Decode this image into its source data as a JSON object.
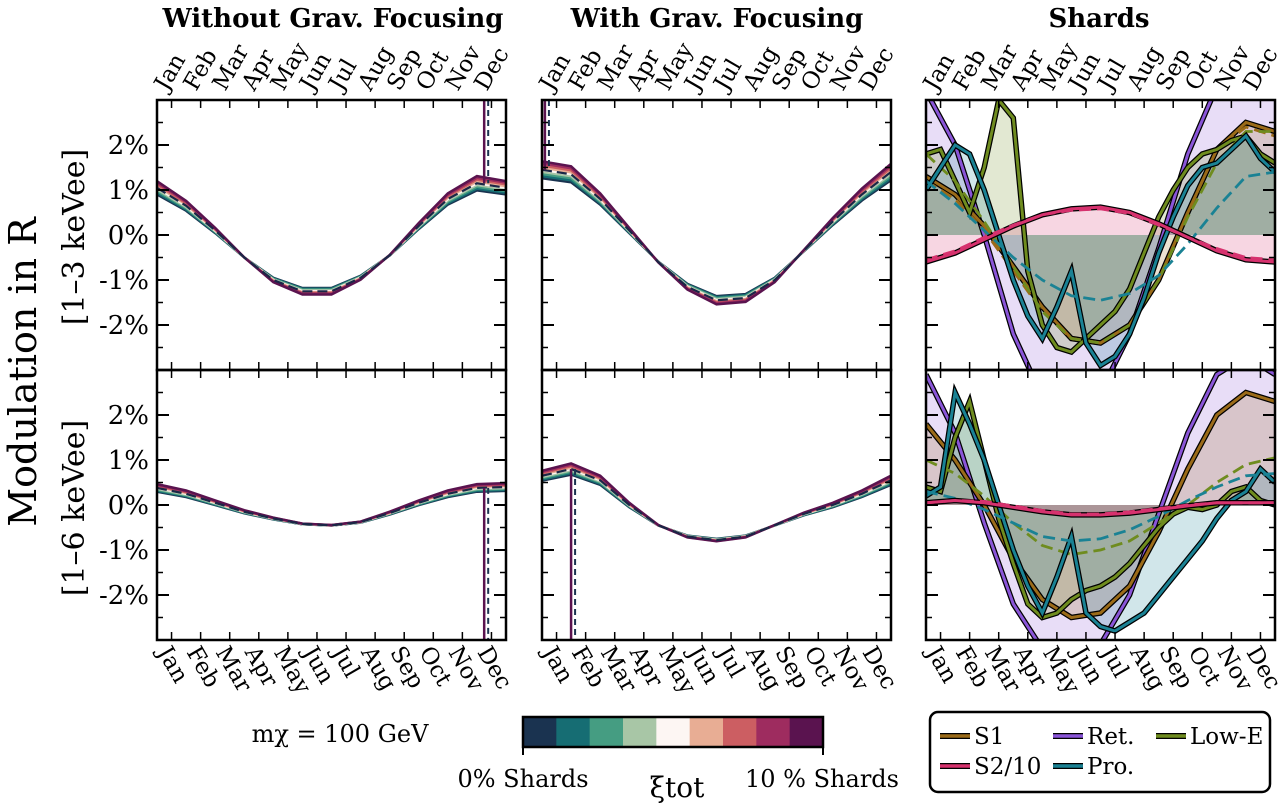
{
  "chart_data": {
    "type": "line",
    "ylabel": "Modulation in R",
    "months": [
      "Jan",
      "Feb",
      "Mar",
      "Apr",
      "May",
      "Jun",
      "Jul",
      "Aug",
      "Sep",
      "Oct",
      "Nov",
      "Dec"
    ],
    "column_titles": [
      "Without Grav. Focusing",
      "With Grav. Focusing",
      "Shards"
    ],
    "row_labels": [
      "[1–3 keVee]",
      "[1–6 keVee]"
    ],
    "ytick_labels": [
      "2%",
      "1%",
      "0%",
      "-1%",
      "-2%"
    ],
    "ytick_values": [
      2,
      1,
      0,
      -1,
      -2
    ],
    "ylim": [
      -3,
      3
    ],
    "mass_label": "mχ = 100 GeV",
    "colorbar": {
      "label": "ξtot",
      "left": "0% Shards",
      "right": "10 % Shards",
      "colors": [
        "#1a3350",
        "#166d73",
        "#459d82",
        "#a8c6a6",
        "#fdf6f3",
        "#e8ad94",
        "#cc5e62",
        "#9e2c5f",
        "#5a134f"
      ]
    },
    "legend": [
      {
        "name": "S1",
        "color": "#9b6b19"
      },
      {
        "name": "S2/10",
        "color": "#d6326e"
      },
      {
        "name": "Ret.",
        "color": "#8a55d8"
      },
      {
        "name": "Pro.",
        "color": "#1a8294"
      },
      {
        "name": "Low-E",
        "color": "#6f8c1f"
      }
    ],
    "panels": {
      "nofocus_1_3": {
        "x": [
          0,
          1,
          2,
          3,
          4,
          5,
          6,
          7,
          8,
          9,
          10,
          11,
          12
        ],
        "y": [
          1.05,
          0.65,
          0.1,
          -0.5,
          -1.0,
          -1.25,
          -1.25,
          -0.95,
          -0.45,
          0.2,
          0.8,
          1.15,
          1.05
        ]
      },
      "focus_1_3": {
        "x": [
          0,
          1,
          2,
          3,
          4,
          5,
          6,
          7,
          8,
          9,
          10,
          11,
          12
        ],
        "y": [
          1.45,
          1.35,
          0.8,
          0.1,
          -0.6,
          -1.15,
          -1.45,
          -1.4,
          -1.0,
          -0.35,
          0.3,
          0.9,
          1.4
        ]
      },
      "nofocus_1_6": {
        "x": [
          0,
          1,
          2,
          3,
          4,
          5,
          6,
          7,
          8,
          9,
          10,
          11,
          12
        ],
        "y": [
          0.38,
          0.25,
          0.05,
          -0.15,
          -0.3,
          -0.42,
          -0.45,
          -0.38,
          -0.18,
          0.05,
          0.25,
          0.38,
          0.4
        ]
      },
      "focus_1_6": {
        "x": [
          0,
          1,
          2,
          3,
          4,
          5,
          6,
          7,
          8,
          9,
          10,
          11,
          12
        ],
        "y": [
          0.65,
          0.8,
          0.55,
          0.0,
          -0.45,
          -0.7,
          -0.78,
          -0.7,
          -0.45,
          -0.2,
          0.0,
          0.25,
          0.55
        ]
      },
      "shards_1_3": {
        "S1": {
          "x": [
            0,
            1,
            2,
            3,
            4,
            5,
            6,
            7,
            8,
            9,
            10,
            11,
            12
          ],
          "y": [
            1.3,
            0.9,
            0.2,
            -0.7,
            -1.6,
            -2.3,
            -2.4,
            -2.0,
            -1.0,
            0.5,
            1.9,
            2.5,
            2.3
          ]
        },
        "S1_dash": {
          "x": [
            0,
            1,
            2,
            3,
            4,
            5,
            6,
            7,
            8,
            9,
            10,
            11,
            12
          ],
          "y": [
            1.2,
            0.8,
            0.1,
            -0.8,
            -1.7,
            -2.3,
            -2.4,
            -2.0,
            -1.0,
            0.5,
            1.9,
            2.4,
            2.2
          ]
        },
        "S2/10": {
          "x": [
            0,
            1,
            2,
            3,
            4,
            5,
            6,
            7,
            8,
            9,
            10,
            11,
            12
          ],
          "y": [
            -0.6,
            -0.4,
            -0.1,
            0.2,
            0.45,
            0.58,
            0.62,
            0.5,
            0.25,
            -0.05,
            -0.35,
            -0.55,
            -0.6
          ]
        },
        "S2/10_dash": {
          "x": [
            0,
            1,
            2,
            3,
            4,
            5,
            6,
            7,
            8,
            9,
            10,
            11,
            12
          ],
          "y": [
            -0.55,
            -0.35,
            -0.05,
            0.22,
            0.45,
            0.55,
            0.58,
            0.48,
            0.22,
            -0.05,
            -0.3,
            -0.5,
            -0.55
          ]
        },
        "Ret.": {
          "x": [
            0,
            1,
            2,
            3,
            4,
            5,
            6,
            7,
            8,
            9,
            10,
            11,
            12
          ],
          "y": [
            3.2,
            2.0,
            0.0,
            -2.2,
            -3.6,
            -4.0,
            -3.5,
            -2.2,
            -0.3,
            1.8,
            3.3,
            4.0,
            3.5
          ]
        },
        "Pro.": {
          "x": [
            0,
            0.5,
            1,
            1.5,
            2,
            2.5,
            3,
            3.5,
            4,
            4.5,
            5,
            5.5,
            6,
            6.5,
            7,
            7.5,
            8,
            8.5,
            9,
            9.5,
            10,
            10.5,
            11,
            11.5,
            12
          ],
          "y": [
            1.0,
            1.5,
            2.0,
            1.8,
            1.0,
            0.0,
            -1.0,
            -1.8,
            -2.3,
            -1.6,
            -0.8,
            -2.4,
            -2.9,
            -2.7,
            -2.2,
            -1.4,
            -0.4,
            0.4,
            1.1,
            1.5,
            1.6,
            1.9,
            2.2,
            1.7,
            1.4
          ]
        },
        "Pro._dash": {
          "x": [
            0,
            1,
            2,
            3,
            4,
            5,
            6,
            7,
            8,
            9,
            10,
            11,
            12
          ],
          "y": [
            1.2,
            0.7,
            0.1,
            -0.5,
            -1.0,
            -1.35,
            -1.45,
            -1.3,
            -0.9,
            -0.2,
            0.6,
            1.3,
            1.4
          ]
        },
        "Low-E": {
          "x": [
            0,
            0.5,
            1,
            1.5,
            2,
            2.5,
            3,
            3.5,
            4,
            4.5,
            5,
            5.5,
            6,
            6.5,
            7,
            7.5,
            8,
            8.5,
            9,
            9.5,
            10,
            10.5,
            11,
            11.5,
            12
          ],
          "y": [
            1.8,
            1.9,
            1.2,
            0.5,
            1.5,
            3.0,
            2.6,
            -0.8,
            -2.0,
            -2.5,
            -2.6,
            -2.3,
            -2.0,
            -1.7,
            -1.2,
            -0.4,
            0.4,
            1.0,
            1.5,
            1.8,
            1.9,
            2.1,
            2.2,
            1.8,
            1.6
          ]
        },
        "Low-E_dash": {
          "x": [
            0,
            1,
            2,
            3,
            4,
            5,
            6,
            7,
            8,
            9,
            10,
            11,
            12
          ],
          "y": [
            1.8,
            1.2,
            0.3,
            -0.7,
            -1.7,
            -2.3,
            -2.4,
            -2.0,
            -1.0,
            0.4,
            1.6,
            2.3,
            2.3
          ]
        }
      },
      "shards_1_6": {
        "S1": {
          "x": [
            0,
            1,
            2,
            3,
            4,
            5,
            6,
            7,
            8,
            9,
            10,
            11,
            12
          ],
          "y": [
            1.8,
            1.0,
            0.0,
            -1.2,
            -2.1,
            -2.5,
            -2.4,
            -1.8,
            -0.6,
            0.8,
            2.0,
            2.5,
            2.3
          ]
        },
        "S2/10": {
          "x": [
            0,
            1,
            2,
            3,
            4,
            5,
            6,
            7,
            8,
            9,
            10,
            11,
            12
          ],
          "y": [
            0.05,
            0.1,
            0.05,
            -0.05,
            -0.15,
            -0.22,
            -0.22,
            -0.18,
            -0.1,
            -0.02,
            0.05,
            0.05,
            0.05
          ]
        },
        "S2/10_dash": {
          "x": [
            0,
            1,
            2,
            3,
            4,
            5,
            6,
            7,
            8,
            9,
            10,
            11,
            12
          ],
          "y": [
            0.05,
            0.1,
            0.08,
            -0.02,
            -0.12,
            -0.2,
            -0.2,
            -0.15,
            -0.08,
            0.0,
            0.05,
            0.05,
            0.05
          ]
        },
        "Ret.": {
          "x": [
            0,
            1,
            2,
            3,
            4,
            5,
            6,
            7,
            8,
            9,
            10,
            11,
            12
          ],
          "y": [
            2.9,
            1.6,
            -0.4,
            -2.2,
            -3.2,
            -3.5,
            -3.1,
            -2.0,
            -0.2,
            1.6,
            2.9,
            3.3,
            2.9
          ]
        },
        "Pro.": {
          "x": [
            0,
            0.5,
            1,
            1.5,
            2,
            2.5,
            3,
            3.5,
            4,
            4.5,
            5,
            5.5,
            6,
            6.5,
            7,
            7.5,
            8,
            8.5,
            9,
            9.5,
            10,
            10.5,
            11,
            11.5,
            12
          ],
          "y": [
            0.2,
            0.4,
            2.5,
            1.8,
            1.0,
            0.0,
            -1.0,
            -1.8,
            -2.4,
            -1.6,
            -0.7,
            -2.4,
            -2.7,
            -2.8,
            -2.6,
            -2.4,
            -2.0,
            -1.6,
            -1.2,
            -0.8,
            -0.3,
            0.1,
            0.3,
            0.8,
            0.5
          ]
        },
        "Pro._dash": {
          "x": [
            0,
            1,
            2,
            3,
            4,
            5,
            6,
            7,
            8,
            9,
            10,
            11,
            12
          ],
          "y": [
            0.3,
            0.15,
            -0.1,
            -0.4,
            -0.7,
            -0.8,
            -0.75,
            -0.55,
            -0.25,
            0.1,
            0.4,
            0.65,
            0.7
          ]
        },
        "Low-E": {
          "x": [
            0,
            0.5,
            1,
            1.5,
            2,
            2.5,
            3,
            3.5,
            4,
            4.5,
            5,
            5.5,
            6,
            6.5,
            7,
            7.5,
            8,
            8.5,
            9,
            9.5,
            10,
            10.5,
            11,
            11.5,
            12
          ],
          "y": [
            0.4,
            0.3,
            1.5,
            2.3,
            1.0,
            -0.3,
            -1.3,
            -2.2,
            -2.5,
            -2.4,
            -2.1,
            -1.9,
            -1.8,
            -1.6,
            -1.3,
            -0.9,
            -0.5,
            -0.2,
            -0.05,
            -0.1,
            0.0,
            0.3,
            0.4,
            0.1,
            0.0
          ]
        },
        "Low-E_dash": {
          "x": [
            0,
            1,
            2,
            3,
            4,
            5,
            6,
            7,
            8,
            9,
            10,
            11,
            12
          ],
          "y": [
            1.0,
            0.7,
            0.2,
            -0.4,
            -0.9,
            -1.1,
            -1.0,
            -0.8,
            -0.4,
            0.0,
            0.5,
            0.9,
            1.05
          ]
        }
      }
    }
  }
}
